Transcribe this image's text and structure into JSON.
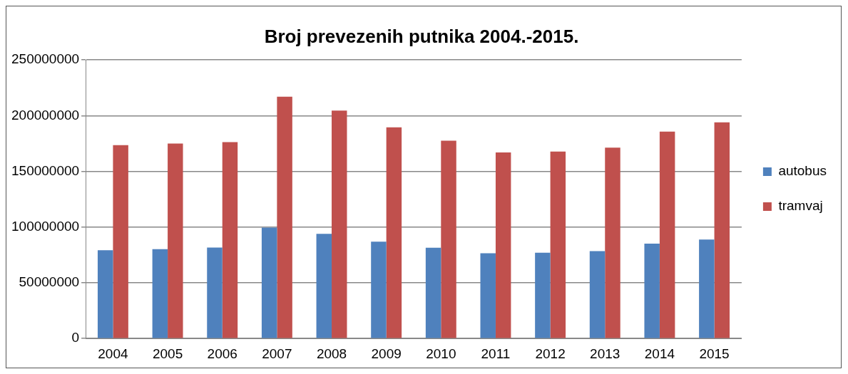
{
  "chart_data": {
    "type": "bar",
    "title": "Broj prevezenih putnika 2004.-2015.",
    "categories": [
      "2004",
      "2005",
      "2006",
      "2007",
      "2008",
      "2009",
      "2010",
      "2011",
      "2012",
      "2013",
      "2014",
      "2015"
    ],
    "series": [
      {
        "name": "autobus",
        "color": "#4f81bd",
        "values": [
          79300000,
          80200000,
          81700000,
          99600000,
          93900000,
          87000000,
          81500000,
          76500000,
          77000000,
          78500000,
          85200000,
          88900000
        ]
      },
      {
        "name": "tramvaj",
        "color": "#c0504d",
        "values": [
          173500000,
          175000000,
          176300000,
          217000000,
          204600000,
          189600000,
          177600000,
          167000000,
          167800000,
          171300000,
          185700000,
          194100000
        ]
      }
    ],
    "ylim": [
      0,
      250000000
    ],
    "yticks": [
      0,
      50000000,
      100000000,
      150000000,
      200000000,
      250000000
    ],
    "grid": "y",
    "legend": "right"
  }
}
